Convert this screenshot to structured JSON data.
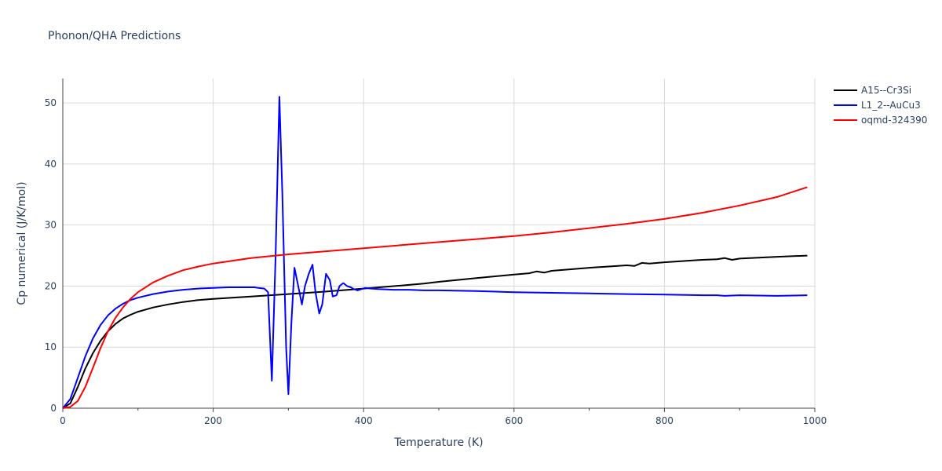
{
  "chart_data": {
    "type": "line",
    "title": "Phonon/QHA Predictions",
    "xlabel": "Temperature (K)",
    "ylabel": "Cp numerical (J/K/mol)",
    "xlim": [
      0,
      1000
    ],
    "ylim": [
      0,
      54
    ],
    "xticks": [
      0,
      200,
      400,
      600,
      800,
      1000
    ],
    "yticks": [
      0,
      10,
      20,
      30,
      40,
      50
    ],
    "grid": true,
    "legend_position": "top-right",
    "series": [
      {
        "name": "A15--Cr3Si",
        "color": "#000000",
        "x": [
          0,
          10,
          20,
          30,
          40,
          50,
          60,
          70,
          80,
          90,
          100,
          120,
          140,
          160,
          180,
          200,
          250,
          300,
          350,
          400,
          450,
          480,
          500,
          550,
          600,
          620,
          630,
          640,
          650,
          700,
          750,
          760,
          770,
          780,
          800,
          850,
          870,
          880,
          890,
          900,
          950,
          990
        ],
        "y": [
          0,
          0.8,
          3.5,
          6.5,
          9.0,
          11.0,
          12.6,
          13.8,
          14.7,
          15.3,
          15.8,
          16.5,
          17.0,
          17.4,
          17.7,
          17.9,
          18.3,
          18.7,
          19.1,
          19.6,
          20.1,
          20.4,
          20.7,
          21.3,
          21.9,
          22.1,
          22.4,
          22.2,
          22.5,
          23.0,
          23.4,
          23.3,
          23.8,
          23.7,
          23.9,
          24.3,
          24.4,
          24.6,
          24.3,
          24.5,
          24.8,
          25.0
        ]
      },
      {
        "name": "L1_2--AuCu3",
        "color": "#0000ff",
        "x": [
          0,
          10,
          20,
          30,
          40,
          50,
          60,
          70,
          80,
          90,
          100,
          120,
          140,
          160,
          180,
          200,
          220,
          240,
          255,
          260,
          268,
          273,
          278,
          283,
          288,
          292,
          297,
          300,
          304,
          308,
          313,
          318,
          322,
          327,
          332,
          336,
          341,
          345,
          350,
          355,
          359,
          364,
          368,
          373,
          378,
          383,
          387,
          392,
          397,
          402,
          410,
          420,
          440,
          460,
          480,
          500,
          550,
          600,
          650,
          700,
          750,
          800,
          850,
          870,
          880,
          900,
          950,
          990
        ],
        "y": [
          0,
          1.5,
          5.0,
          8.5,
          11.4,
          13.6,
          15.2,
          16.3,
          17.1,
          17.7,
          18.1,
          18.7,
          19.1,
          19.4,
          19.6,
          19.7,
          19.8,
          19.8,
          19.8,
          19.7,
          19.6,
          19.0,
          4.5,
          25.0,
          51.0,
          35.0,
          10.0,
          2.3,
          14.0,
          23.0,
          20.0,
          17.0,
          20.0,
          22.0,
          23.5,
          19.0,
          15.5,
          17.0,
          22.0,
          21.0,
          18.3,
          18.5,
          20.0,
          20.5,
          20.0,
          19.8,
          19.5,
          19.3,
          19.5,
          19.7,
          19.6,
          19.5,
          19.4,
          19.4,
          19.3,
          19.3,
          19.2,
          19.0,
          18.9,
          18.8,
          18.7,
          18.6,
          18.5,
          18.5,
          18.4,
          18.5,
          18.4,
          18.5
        ]
      },
      {
        "name": "oqmd-324390",
        "color": "#ff0000",
        "x": [
          0,
          10,
          20,
          30,
          40,
          50,
          60,
          70,
          80,
          90,
          100,
          120,
          140,
          160,
          180,
          200,
          250,
          300,
          350,
          400,
          450,
          500,
          550,
          600,
          650,
          700,
          750,
          800,
          850,
          900,
          950,
          990
        ],
        "y": [
          0,
          0.2,
          1.2,
          3.5,
          6.6,
          9.8,
          12.6,
          14.8,
          16.5,
          17.9,
          19.0,
          20.6,
          21.7,
          22.6,
          23.2,
          23.7,
          24.6,
          25.2,
          25.7,
          26.2,
          26.7,
          27.2,
          27.7,
          28.2,
          28.8,
          29.5,
          30.2,
          31.0,
          32.0,
          33.2,
          34.6,
          36.2
        ]
      }
    ]
  }
}
